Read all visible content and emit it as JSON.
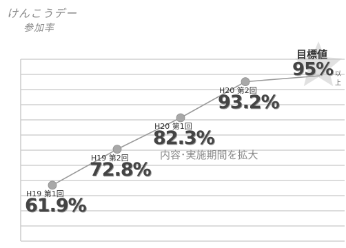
{
  "header": {
    "title": "けんこうデー",
    "subtitle": "参加率"
  },
  "target": {
    "label": "目標値",
    "value": "95%",
    "approx": "以上"
  },
  "annotation": "内容･実施期間を拡大",
  "colors": {
    "line": "#9a9a9a",
    "marker": "#a8a8a8",
    "grid": "#c8c8c8",
    "text": "#444444",
    "star": "#d9d9d9"
  },
  "chart_data": {
    "type": "line",
    "categories": [
      "H19 第1回",
      "H19 第2回",
      "H20 第1回",
      "H20 第2回"
    ],
    "values": [
      61.9,
      72.8,
      82.3,
      93.2
    ],
    "value_labels": [
      "61.9%",
      "72.8%",
      "82.3%",
      "93.2%"
    ],
    "target_value": 95,
    "ylim": [
      45,
      100
    ],
    "grid": true
  }
}
